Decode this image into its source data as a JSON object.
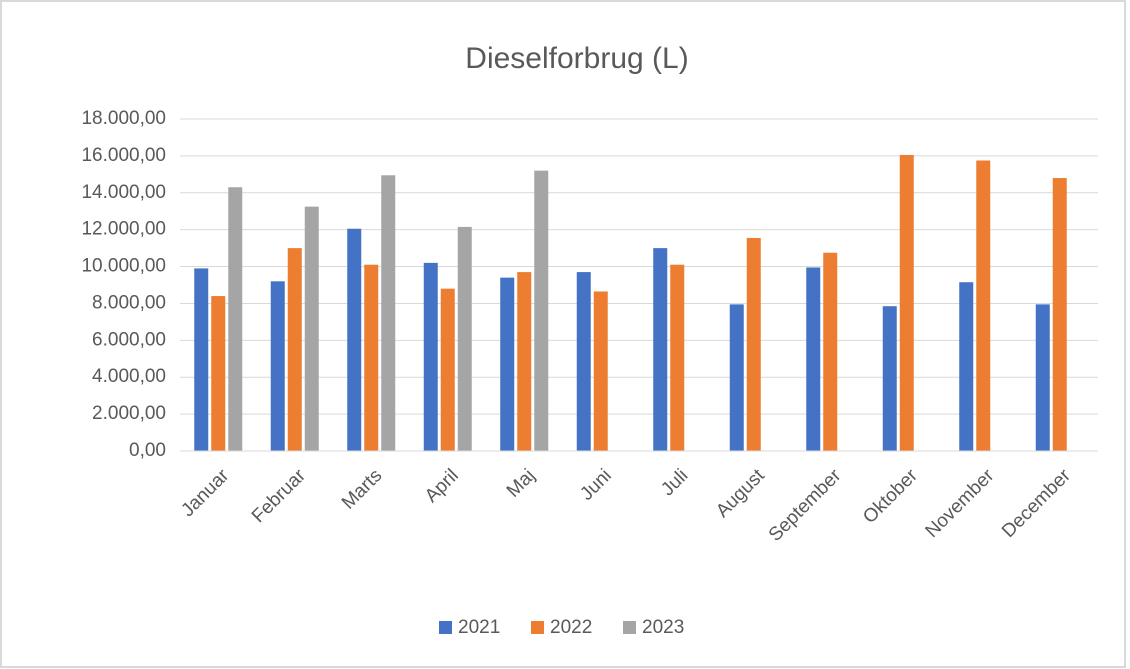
{
  "chart_data": {
    "type": "bar",
    "title": "Dieselforbrug (L)",
    "categories": [
      "Januar",
      "Februar",
      "Marts",
      "April",
      "Maj",
      "Juni",
      "Juli",
      "August",
      "September",
      "Oktober",
      "November",
      "December"
    ],
    "series": [
      {
        "name": "2021",
        "color": "#4472c4",
        "values": [
          9900,
          9200,
          12050,
          10200,
          9400,
          9700,
          11000,
          7950,
          9950,
          7850,
          9150,
          7950
        ]
      },
      {
        "name": "2022",
        "color": "#ed7d31",
        "values": [
          8400,
          11000,
          10100,
          8800,
          9700,
          8650,
          10100,
          11550,
          10750,
          16050,
          15750,
          14800
        ]
      },
      {
        "name": "2023",
        "color": "#a5a5a5",
        "values": [
          14300,
          13250,
          14950,
          12150,
          15200,
          null,
          null,
          null,
          null,
          null,
          null,
          null
        ]
      }
    ],
    "ylim": [
      0,
      18000
    ],
    "yticks": [
      {
        "value": 0,
        "label": "0,00"
      },
      {
        "value": 2000,
        "label": "2.000,00"
      },
      {
        "value": 4000,
        "label": "4.000,00"
      },
      {
        "value": 6000,
        "label": "6.000,00"
      },
      {
        "value": 8000,
        "label": "8.000,00"
      },
      {
        "value": 10000,
        "label": "10.000,00"
      },
      {
        "value": 12000,
        "label": "12.000,00"
      },
      {
        "value": 14000,
        "label": "14.000,00"
      },
      {
        "value": 16000,
        "label": "16.000,00"
      },
      {
        "value": 18000,
        "label": "18.000,00"
      }
    ],
    "grid": true,
    "legend": "bottom"
  }
}
